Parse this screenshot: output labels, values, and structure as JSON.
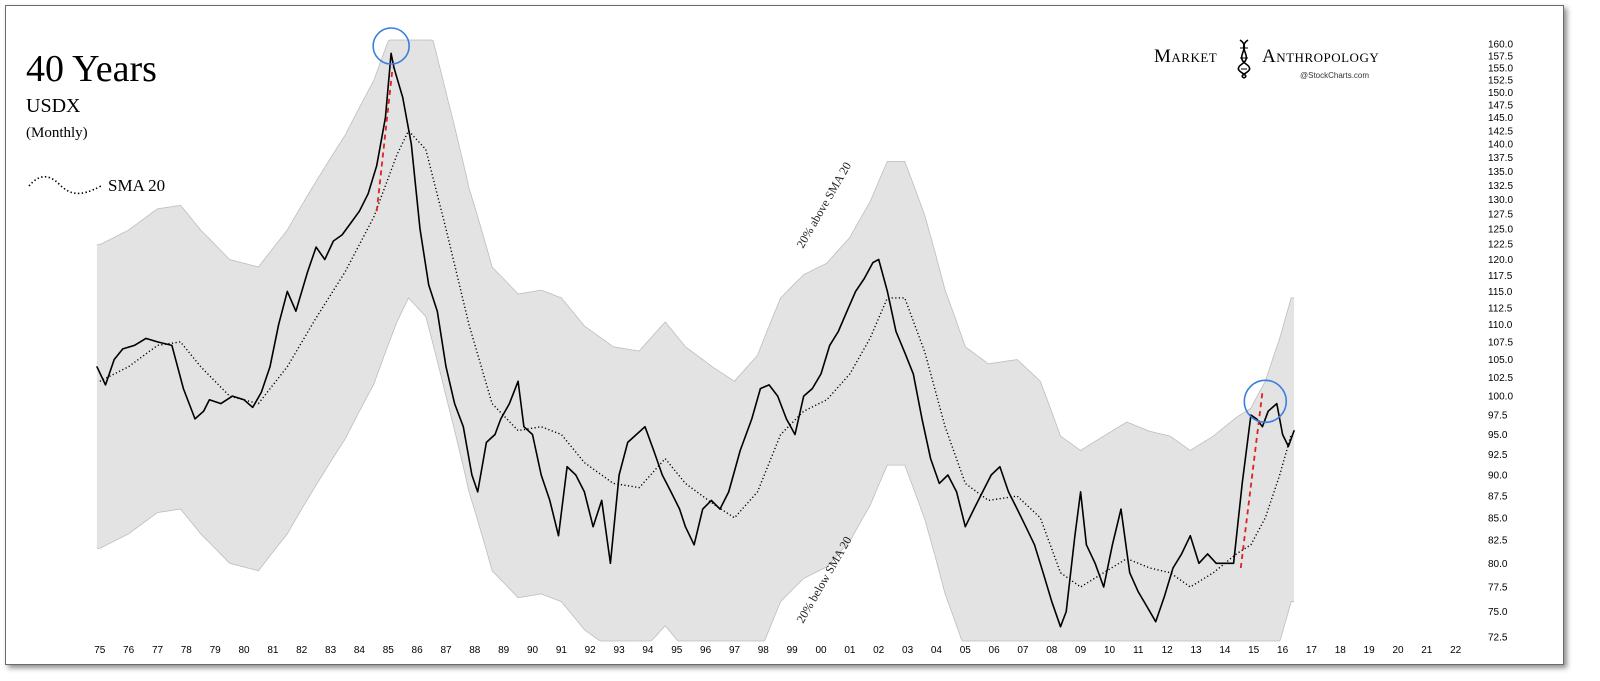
{
  "chart_data": {
    "type": "line",
    "title": "40 Years",
    "subtitle": "USDX",
    "frequency_label": "(Monthly)",
    "legend": [
      {
        "name": "SMA 20",
        "style": "dotted"
      }
    ],
    "brand": {
      "name_part1": "Market",
      "name_part2": "Anthropology",
      "credit": "@StockCharts.com"
    },
    "annotations": {
      "upper": "20% above SMA 20",
      "lower": "20% below SMA 20"
    },
    "x_tick_labels": [
      "75",
      "76",
      "77",
      "78",
      "79",
      "80",
      "81",
      "82",
      "83",
      "84",
      "85",
      "86",
      "87",
      "88",
      "89",
      "90",
      "91",
      "92",
      "93",
      "94",
      "95",
      "96",
      "97",
      "98",
      "99",
      "00",
      "01",
      "02",
      "03",
      "04",
      "05",
      "06",
      "07",
      "08",
      "09",
      "10",
      "11",
      "12",
      "13",
      "14",
      "15",
      "16",
      "17",
      "18",
      "19",
      "20",
      "21",
      "22"
    ],
    "x_range_year": [
      1974.8,
      2022.6
    ],
    "y_tick_labels": [
      "160.0",
      "157.5",
      "155.0",
      "152.5",
      "150.0",
      "147.5",
      "145.0",
      "142.5",
      "140.0",
      "137.5",
      "135.0",
      "132.5",
      "130.0",
      "127.5",
      "125.0",
      "122.5",
      "120.0",
      "117.5",
      "115.0",
      "112.5",
      "110.0",
      "107.5",
      "105.0",
      "102.5",
      "100.0",
      "97.5",
      "95.0",
      "92.5",
      "90.0",
      "87.5",
      "85.0",
      "82.5",
      "80.0",
      "77.5",
      "75.0",
      "72.5"
    ],
    "ylim": [
      72.5,
      160.0
    ],
    "y_scale": "log",
    "band_pct": 20,
    "series": [
      {
        "name": "USDX",
        "style": "solid",
        "x": [
          1974.9,
          1975.2,
          1975.5,
          1975.8,
          1976.2,
          1976.6,
          1977.0,
          1977.5,
          1977.9,
          1978.3,
          1978.6,
          1978.8,
          1979.2,
          1979.6,
          1980.0,
          1980.3,
          1980.6,
          1980.9,
          1981.2,
          1981.5,
          1981.8,
          1982.2,
          1982.5,
          1982.8,
          1983.1,
          1983.4,
          1983.7,
          1984.0,
          1984.3,
          1984.6,
          1984.9,
          1985.1,
          1985.2,
          1985.5,
          1985.8,
          1986.1,
          1986.4,
          1986.7,
          1987.0,
          1987.3,
          1987.6,
          1987.9,
          1988.1,
          1988.4,
          1988.7,
          1988.9,
          1989.2,
          1989.5,
          1989.7,
          1990.0,
          1990.3,
          1990.6,
          1990.9,
          1991.2,
          1991.5,
          1991.8,
          1992.1,
          1992.4,
          1992.7,
          1993.0,
          1993.3,
          1993.6,
          1993.9,
          1994.2,
          1994.5,
          1994.8,
          1995.1,
          1995.3,
          1995.6,
          1995.9,
          1996.2,
          1996.5,
          1996.8,
          1997.2,
          1997.6,
          1997.9,
          1998.2,
          1998.5,
          1998.8,
          1999.1,
          1999.4,
          1999.7,
          2000.0,
          2000.3,
          2000.6,
          2000.9,
          2001.2,
          2001.5,
          2001.8,
          2002.0,
          2002.3,
          2002.6,
          2002.9,
          2003.2,
          2003.5,
          2003.8,
          2004.1,
          2004.4,
          2004.7,
          2005.0,
          2005.3,
          2005.6,
          2005.9,
          2006.2,
          2006.5,
          2006.8,
          2007.1,
          2007.4,
          2007.7,
          2008.0,
          2008.3,
          2008.5,
          2008.8,
          2009.0,
          2009.2,
          2009.5,
          2009.8,
          2010.1,
          2010.4,
          2010.7,
          2011.0,
          2011.3,
          2011.6,
          2011.9,
          2012.2,
          2012.5,
          2012.8,
          2013.1,
          2013.4,
          2013.7,
          2014.0,
          2014.3,
          2014.6,
          2014.9,
          2015.1,
          2015.3,
          2015.5,
          2015.8,
          2016.0,
          2016.2,
          2016.4
        ],
        "y": [
          104.0,
          101.5,
          105.0,
          106.5,
          107.0,
          108.0,
          107.5,
          107.0,
          101.0,
          97.0,
          98.0,
          99.5,
          99.0,
          100.0,
          99.5,
          98.5,
          100.5,
          104.0,
          110.0,
          115.0,
          112.0,
          118.0,
          122.0,
          120.0,
          123.0,
          124.0,
          126.0,
          128.0,
          131.0,
          136.0,
          145.0,
          158.0,
          155.0,
          149.0,
          140.0,
          125.0,
          116.0,
          112.0,
          104.0,
          99.0,
          96.0,
          90.0,
          88.0,
          94.0,
          95.0,
          97.0,
          99.0,
          102.0,
          96.0,
          95.0,
          90.0,
          87.0,
          83.0,
          91.0,
          90.0,
          88.0,
          84.0,
          87.0,
          80.0,
          90.0,
          94.0,
          95.0,
          96.0,
          93.0,
          90.0,
          88.0,
          86.0,
          84.0,
          82.0,
          86.0,
          87.0,
          86.0,
          88.0,
          93.0,
          97.0,
          101.0,
          101.5,
          100.0,
          97.0,
          95.0,
          100.0,
          101.0,
          103.0,
          107.0,
          109.0,
          112.0,
          115.0,
          117.0,
          119.5,
          120.0,
          115.0,
          109.0,
          106.0,
          103.0,
          97.0,
          92.0,
          89.0,
          90.0,
          88.0,
          84.0,
          86.0,
          88.0,
          90.0,
          91.0,
          88.0,
          86.0,
          84.0,
          82.0,
          79.0,
          76.0,
          73.5,
          75.0,
          83.0,
          88.0,
          82.0,
          80.0,
          77.5,
          82.0,
          86.0,
          79.0,
          77.0,
          75.5,
          74.0,
          76.5,
          79.5,
          81.0,
          83.0,
          80.0,
          81.0,
          80.0,
          80.0,
          80.0,
          89.0,
          97.5,
          97.0,
          96.0,
          98.0,
          99.0,
          95.0,
          93.5,
          95.5
        ]
      },
      {
        "name": "SMA 20",
        "style": "dotted",
        "x": [
          1975.0,
          1976.0,
          1977.0,
          1977.8,
          1978.5,
          1979.5,
          1980.5,
          1981.5,
          1982.5,
          1983.5,
          1984.5,
          1985.3,
          1985.7,
          1986.3,
          1987.0,
          1987.8,
          1988.6,
          1989.5,
          1990.3,
          1991.0,
          1991.8,
          1992.8,
          1993.7,
          1994.6,
          1995.3,
          1996.3,
          1997.0,
          1997.8,
          1998.6,
          1999.4,
          2000.2,
          2001.0,
          2001.7,
          2002.3,
          2002.9,
          2003.6,
          2004.3,
          2005.0,
          2005.8,
          2006.8,
          2007.6,
          2008.3,
          2009.0,
          2009.8,
          2010.6,
          2011.4,
          2012.1,
          2012.8,
          2013.6,
          2014.4,
          2014.9,
          2015.4,
          2015.9,
          2016.3
        ],
        "y": [
          102.0,
          104.0,
          107.0,
          107.5,
          104.0,
          100.0,
          99.0,
          104.0,
          111.0,
          118.0,
          127.0,
          138.0,
          142.5,
          139.0,
          125.0,
          110.0,
          99.0,
          95.5,
          96.0,
          95.0,
          91.5,
          89.0,
          88.5,
          92.0,
          89.0,
          86.5,
          85.0,
          88.0,
          95.0,
          98.0,
          99.5,
          103.0,
          108.0,
          114.0,
          114.0,
          106.0,
          96.0,
          89.0,
          87.0,
          87.5,
          85.0,
          79.0,
          77.5,
          79.0,
          80.5,
          79.5,
          79.0,
          77.5,
          79.0,
          81.0,
          82.0,
          85.0,
          90.0,
          95.0
        ]
      }
    ]
  }
}
